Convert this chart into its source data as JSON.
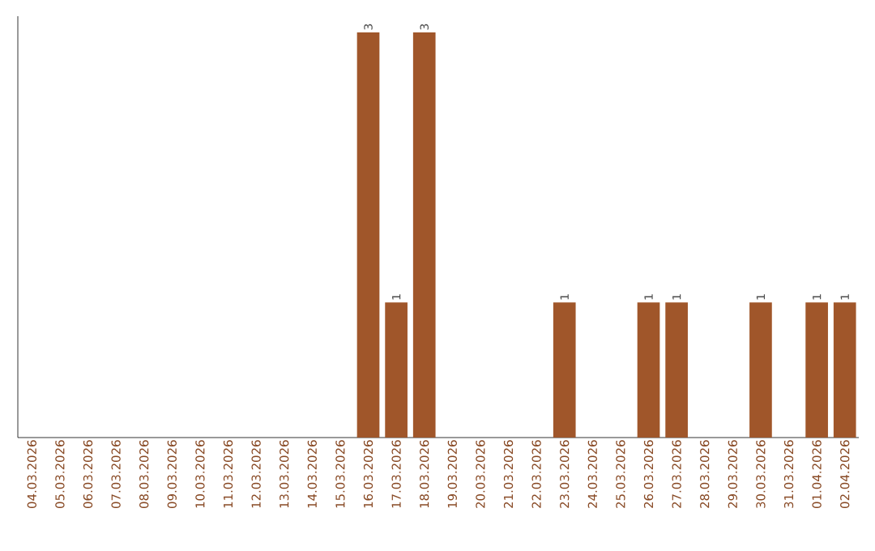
{
  "chart_data": {
    "type": "bar",
    "color": "#a0562a",
    "tick_labels": "x",
    "categories": [
      "04.03.2026",
      "05.03.2026",
      "06.03.2026",
      "07.03.2026",
      "08.03.2026",
      "09.03.2026",
      "10.03.2026",
      "11.03.2026",
      "12.03.2026",
      "13.03.2026",
      "14.03.2026",
      "15.03.2026",
      "16.03.2026",
      "17.03.2026",
      "18.03.2026",
      "19.03.2026",
      "20.03.2026",
      "21.03.2026",
      "22.03.2026",
      "23.03.2026",
      "24.03.2026",
      "25.03.2026",
      "26.03.2026",
      "27.03.2026",
      "28.03.2026",
      "29.03.2026",
      "30.03.2026",
      "31.03.2026",
      "01.04.2026",
      "02.04.2026"
    ],
    "values": [
      null,
      null,
      null,
      null,
      null,
      null,
      null,
      null,
      null,
      null,
      null,
      null,
      3,
      1,
      3,
      null,
      null,
      null,
      null,
      1,
      null,
      null,
      1,
      1,
      null,
      null,
      1,
      null,
      1,
      1
    ],
    "data_labels": true
  }
}
